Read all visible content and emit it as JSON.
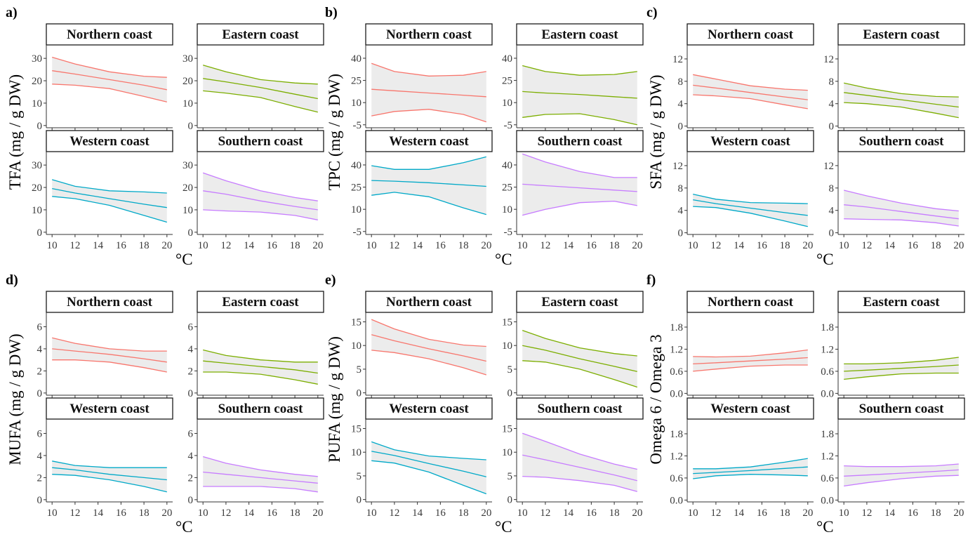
{
  "figure": {
    "x_unit_label": "°C",
    "panel_names": [
      "Northern coast",
      "Eastern coast",
      "Western coast",
      "Southern coast"
    ]
  },
  "colors": {
    "Northern coast": "#F8766D",
    "Eastern coast": "#7CAE00",
    "Western coast": "#00A9C8",
    "Southern coast": "#C77CFF",
    "band_fill": "#ececec"
  },
  "chart_data": [
    {
      "type": "line",
      "panel_label": "a)",
      "ylabel": "TFA (mg / g DW)",
      "x": [
        10,
        12,
        15,
        18,
        20
      ],
      "xticks": [
        10,
        12,
        14,
        16,
        18,
        20
      ],
      "ylim": [
        -1,
        36
      ],
      "yticks": [
        0,
        10,
        20,
        30
      ],
      "series": [
        {
          "name": "Northern coast",
          "fit": [
            24.5,
            23,
            20.5,
            18,
            16
          ],
          "lower": [
            18.5,
            18,
            16.5,
            13,
            10.5
          ],
          "upper": [
            30.5,
            27.5,
            24,
            22,
            21.5
          ]
        },
        {
          "name": "Eastern coast",
          "fit": [
            21,
            19.5,
            17,
            14,
            12
          ],
          "lower": [
            15.5,
            14.5,
            12.5,
            8.5,
            6
          ],
          "upper": [
            27,
            24,
            20.5,
            19,
            18.5
          ]
        },
        {
          "name": "Western coast",
          "fit": [
            19.5,
            17.5,
            15,
            12.5,
            11
          ],
          "lower": [
            16,
            15,
            12,
            7.5,
            4.5
          ],
          "upper": [
            23.5,
            20.5,
            18.5,
            18,
            17.5
          ]
        },
        {
          "name": "Southern coast",
          "fit": [
            18.5,
            17,
            14,
            11.5,
            10
          ],
          "lower": [
            10,
            9.5,
            9,
            7.5,
            5.5
          ],
          "upper": [
            26.5,
            23,
            18.5,
            15.5,
            14
          ]
        }
      ]
    },
    {
      "type": "line",
      "panel_label": "b)",
      "ylabel": "TPC (mg / g DW)",
      "x": [
        10,
        12,
        15,
        18,
        20
      ],
      "xticks": [
        10,
        12,
        14,
        16,
        18,
        20
      ],
      "ylim": [
        -7,
        49
      ],
      "yticks": [
        -5,
        10,
        25,
        40
      ],
      "series": [
        {
          "name": "Northern coast",
          "fit": [
            19,
            18,
            16.5,
            15,
            14
          ],
          "lower": [
            1,
            4,
            5.5,
            2,
            -3
          ],
          "upper": [
            36.5,
            31,
            28,
            28.5,
            31
          ]
        },
        {
          "name": "Eastern coast",
          "fit": [
            17.5,
            16.5,
            15.5,
            14,
            13
          ],
          "lower": [
            0,
            2,
            2.5,
            -1.5,
            -5
          ],
          "upper": [
            35,
            31,
            28.5,
            29,
            31
          ]
        },
        {
          "name": "Western coast",
          "fit": [
            29.5,
            29,
            28,
            26.5,
            25.5
          ],
          "lower": [
            19.5,
            21.5,
            18.5,
            11,
            6.5
          ],
          "upper": [
            39.5,
            37,
            37,
            41.5,
            45.5
          ]
        },
        {
          "name": "Southern coast",
          "fit": [
            27,
            26,
            24.5,
            23,
            22
          ],
          "lower": [
            6,
            10,
            14.5,
            15.5,
            12.5
          ],
          "upper": [
            47.5,
            42,
            35.5,
            31.5,
            31.5
          ]
        }
      ]
    },
    {
      "type": "line",
      "panel_label": "c)",
      "ylabel": "SFA (mg / g DW)",
      "x": [
        10,
        12,
        15,
        18,
        20
      ],
      "xticks": [
        10,
        12,
        14,
        16,
        18,
        20
      ],
      "ylim": [
        -0.3,
        14.5
      ],
      "yticks": [
        0,
        4,
        8,
        12
      ],
      "series": [
        {
          "name": "Northern coast",
          "fit": [
            7.3,
            6.8,
            6,
            5.2,
            4.7
          ],
          "lower": [
            5.6,
            5.4,
            4.9,
            3.8,
            3.1
          ],
          "upper": [
            9.2,
            8.4,
            7.2,
            6.6,
            6.4
          ]
        },
        {
          "name": "Eastern coast",
          "fit": [
            6,
            5.5,
            4.7,
            3.9,
            3.4
          ],
          "lower": [
            4.2,
            4,
            3.4,
            2.3,
            1.5
          ],
          "upper": [
            7.7,
            6.8,
            5.8,
            5.3,
            5.2
          ]
        },
        {
          "name": "Western coast",
          "fit": [
            5.9,
            5.2,
            4.4,
            3.6,
            3.1
          ],
          "lower": [
            4.7,
            4.5,
            3.5,
            2.1,
            1.1
          ],
          "upper": [
            6.9,
            6,
            5.4,
            5.3,
            5.2
          ]
        },
        {
          "name": "Southern coast",
          "fit": [
            5,
            4.6,
            3.8,
            3,
            2.5
          ],
          "lower": [
            2.5,
            2.4,
            2.3,
            1.8,
            1.2
          ],
          "upper": [
            7.6,
            6.6,
            5.3,
            4.3,
            3.9
          ]
        }
      ]
    },
    {
      "type": "line",
      "panel_label": "d)",
      "ylabel": "MUFA (mg / g DW)",
      "x": [
        10,
        12,
        15,
        18,
        20
      ],
      "xticks": [
        10,
        12,
        14,
        16,
        18,
        20
      ],
      "ylim": [
        -0.2,
        7.3
      ],
      "yticks": [
        0,
        2,
        4,
        6
      ],
      "series": [
        {
          "name": "Northern coast",
          "fit": [
            4,
            3.8,
            3.5,
            3.1,
            2.8
          ],
          "lower": [
            3,
            3,
            2.8,
            2.3,
            1.9
          ],
          "upper": [
            5,
            4.5,
            4,
            3.8,
            3.8
          ]
        },
        {
          "name": "Eastern coast",
          "fit": [
            2.9,
            2.7,
            2.4,
            2.1,
            1.8
          ],
          "lower": [
            1.9,
            1.9,
            1.7,
            1.2,
            0.8
          ],
          "upper": [
            3.9,
            3.4,
            3,
            2.8,
            2.8
          ]
        },
        {
          "name": "Western coast",
          "fit": [
            2.9,
            2.7,
            2.3,
            2,
            1.8
          ],
          "lower": [
            2.3,
            2.2,
            1.8,
            1.2,
            0.7
          ],
          "upper": [
            3.5,
            3.1,
            2.9,
            2.9,
            2.9
          ]
        },
        {
          "name": "Southern coast",
          "fit": [
            2.5,
            2.3,
            2,
            1.7,
            1.5
          ],
          "lower": [
            1.2,
            1.2,
            1.2,
            1,
            0.7
          ],
          "upper": [
            3.9,
            3.3,
            2.7,
            2.3,
            2.1
          ]
        }
      ]
    },
    {
      "type": "line",
      "panel_label": "e)",
      "ylabel": "PUFA (mg / g DW)",
      "x": [
        10,
        12,
        15,
        18,
        20
      ],
      "xticks": [
        10,
        12,
        14,
        16,
        18,
        20
      ],
      "ylim": [
        -0.5,
        17
      ],
      "yticks": [
        0,
        5,
        10,
        15
      ],
      "series": [
        {
          "name": "Northern coast",
          "fit": [
            12.3,
            11,
            9.3,
            7.8,
            6.7
          ],
          "lower": [
            9,
            8.5,
            7.2,
            5.3,
            3.8
          ],
          "upper": [
            15.5,
            13.5,
            11.3,
            10.1,
            9.8
          ]
        },
        {
          "name": "Eastern coast",
          "fit": [
            10,
            9,
            7.2,
            5.6,
            4.5
          ],
          "lower": [
            6.8,
            6.5,
            5,
            2.8,
            1.2
          ],
          "upper": [
            13.2,
            11.5,
            9.5,
            8.3,
            7.8
          ]
        },
        {
          "name": "Western coast",
          "fit": [
            10.2,
            9.3,
            7.6,
            6,
            4.8
          ],
          "lower": [
            8.2,
            7.7,
            5.8,
            3,
            1.2
          ],
          "upper": [
            12.2,
            10.5,
            9.2,
            8.7,
            8.4
          ]
        },
        {
          "name": "Southern coast",
          "fit": [
            9.4,
            8.4,
            6.8,
            5.2,
            4
          ],
          "lower": [
            4.9,
            4.7,
            4,
            3,
            1.7
          ],
          "upper": [
            14,
            12.3,
            9.6,
            7.5,
            6.4
          ]
        }
      ]
    },
    {
      "type": "line",
      "panel_label": "f)",
      "ylabel": "Omega 6 / Omega 3",
      "x": [
        10,
        12,
        15,
        18,
        20
      ],
      "xticks": [
        10,
        12,
        14,
        16,
        18,
        20
      ],
      "ylim": [
        -0.05,
        2.2
      ],
      "yticks": [
        "0.0",
        "0.6",
        "1.2",
        "1.8"
      ],
      "series": [
        {
          "name": "Northern coast",
          "fit": [
            0.8,
            0.83,
            0.88,
            0.93,
            0.97
          ],
          "lower": [
            0.6,
            0.66,
            0.74,
            0.77,
            0.77
          ],
          "upper": [
            1,
            0.99,
            1.01,
            1.1,
            1.18
          ]
        },
        {
          "name": "Eastern coast",
          "fit": [
            0.6,
            0.63,
            0.68,
            0.73,
            0.77
          ],
          "lower": [
            0.38,
            0.45,
            0.53,
            0.55,
            0.55
          ],
          "upper": [
            0.8,
            0.8,
            0.83,
            0.9,
            0.98
          ]
        },
        {
          "name": "Western coast",
          "fit": [
            0.72,
            0.75,
            0.8,
            0.86,
            0.9
          ],
          "lower": [
            0.58,
            0.66,
            0.7,
            0.68,
            0.66
          ],
          "upper": [
            0.85,
            0.85,
            0.9,
            1.03,
            1.13
          ]
        },
        {
          "name": "Southern coast",
          "fit": [
            0.65,
            0.68,
            0.73,
            0.78,
            0.82
          ],
          "lower": [
            0.38,
            0.47,
            0.58,
            0.65,
            0.67
          ],
          "upper": [
            0.93,
            0.91,
            0.91,
            0.93,
            0.98
          ]
        }
      ]
    }
  ]
}
